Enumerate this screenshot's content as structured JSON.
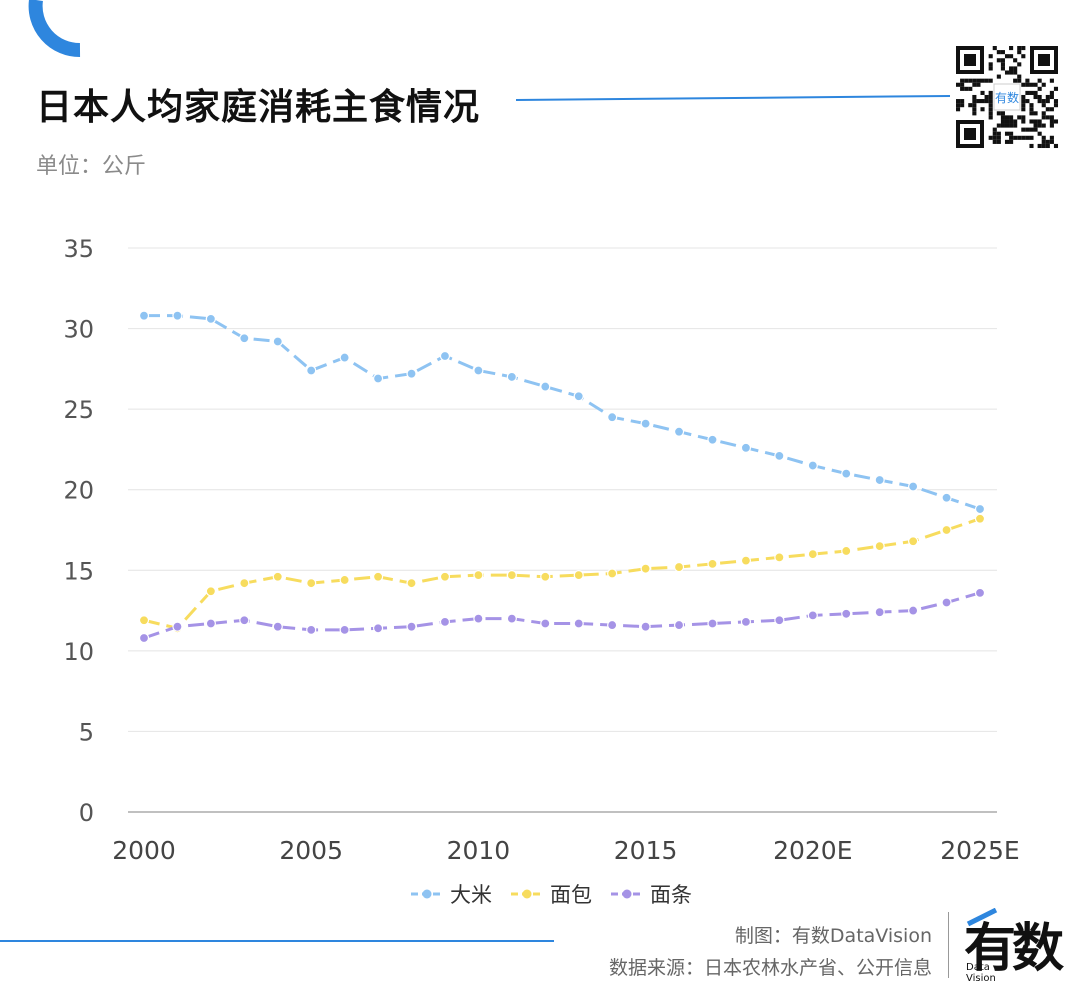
{
  "header": {
    "title": "日本人均家庭消耗主食情况",
    "unit": "单位：公斤"
  },
  "colors": {
    "accent": "#2e86de",
    "rice": "#8ec3f2",
    "bread": "#f7dc5e",
    "noodles": "#a593e6",
    "grid": "#e4e4e4"
  },
  "chart_data": {
    "type": "line",
    "title": "日本人均家庭消耗主食情况",
    "ylabel": "单位：公斤",
    "ylim": [
      0,
      35
    ],
    "yticks": [
      0,
      5,
      10,
      15,
      20,
      25,
      30,
      35
    ],
    "x": [
      2000,
      2001,
      2002,
      2003,
      2004,
      2005,
      2006,
      2007,
      2008,
      2009,
      2010,
      2011,
      2012,
      2013,
      2014,
      2015,
      2016,
      2017,
      2018,
      2019,
      2020,
      2021,
      2022,
      2023,
      2024,
      2025
    ],
    "xticks": [
      {
        "value": 2000,
        "label": "2000"
      },
      {
        "value": 2005,
        "label": "2005"
      },
      {
        "value": 2010,
        "label": "2010"
      },
      {
        "value": 2015,
        "label": "2015"
      },
      {
        "value": 2020,
        "label": "2020E"
      },
      {
        "value": 2025,
        "label": "2025E"
      }
    ],
    "grid": true,
    "legend_position": "bottom-center",
    "series": [
      {
        "name": "大米",
        "color": "#8ec3f2",
        "values": [
          30.8,
          30.8,
          30.6,
          29.4,
          29.2,
          27.4,
          28.2,
          26.9,
          27.2,
          28.3,
          27.4,
          27.0,
          26.4,
          25.8,
          24.5,
          24.1,
          23.6,
          23.1,
          22.6,
          22.1,
          21.5,
          21.0,
          20.6,
          20.2,
          19.5,
          18.8
        ]
      },
      {
        "name": "面包",
        "color": "#f7dc5e",
        "values": [
          11.9,
          11.4,
          13.7,
          14.2,
          14.6,
          14.2,
          14.4,
          14.6,
          14.2,
          14.6,
          14.7,
          14.7,
          14.6,
          14.7,
          14.8,
          15.1,
          15.2,
          15.4,
          15.6,
          15.8,
          16.0,
          16.2,
          16.5,
          16.8,
          17.5,
          18.2
        ]
      },
      {
        "name": "面条",
        "color": "#a593e6",
        "values": [
          10.8,
          11.5,
          11.7,
          11.9,
          11.5,
          11.3,
          11.3,
          11.4,
          11.5,
          11.8,
          12.0,
          12.0,
          11.7,
          11.7,
          11.6,
          11.5,
          11.6,
          11.7,
          11.8,
          11.9,
          12.2,
          12.3,
          12.4,
          12.5,
          13.0,
          13.6
        ]
      }
    ]
  },
  "footer": {
    "credit": "制图：有数DataVision",
    "source": "数据来源：日本农林水产省、公开信息",
    "logo_main": "有数",
    "logo_sub_1": "Data",
    "logo_sub_2": "Vision"
  }
}
